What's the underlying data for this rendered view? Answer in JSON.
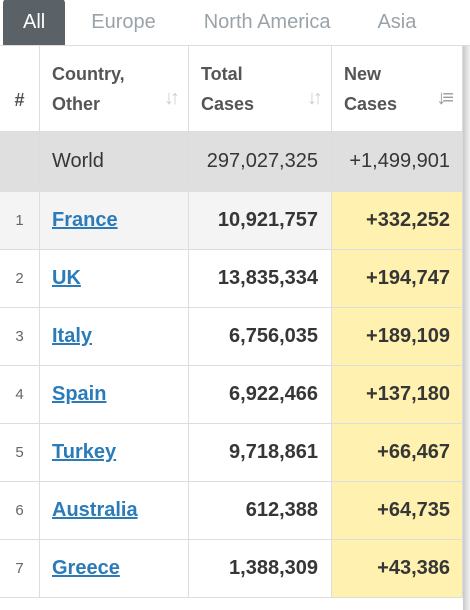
{
  "tabs": [
    "All",
    "Europe",
    "North America",
    "Asia"
  ],
  "headers": {
    "index": "#",
    "country": "Country, Other",
    "total_cases": "Total Cases",
    "new_cases": "New Cases",
    "sort_icon": "sort-icon",
    "sort_active_icon": "sort-descending-icon"
  },
  "world": {
    "country": "World",
    "total_cases": "297,027,325",
    "new_cases": "+1,499,901"
  },
  "rows": [
    {
      "index": "1",
      "country": "France",
      "total_cases": "10,921,757",
      "new_cases": "+332,252"
    },
    {
      "index": "2",
      "country": "UK",
      "total_cases": "13,835,334",
      "new_cases": "+194,747"
    },
    {
      "index": "3",
      "country": "Italy",
      "total_cases": "6,756,035",
      "new_cases": "+189,109"
    },
    {
      "index": "4",
      "country": "Spain",
      "total_cases": "6,922,466",
      "new_cases": "+137,180"
    },
    {
      "index": "5",
      "country": "Turkey",
      "total_cases": "9,718,861",
      "new_cases": "+66,467"
    },
    {
      "index": "6",
      "country": "Australia",
      "total_cases": "612,388",
      "new_cases": "+64,735"
    },
    {
      "index": "7",
      "country": "Greece",
      "total_cases": "1,388,309",
      "new_cases": "+43,386"
    }
  ],
  "colors": {
    "tab_active_bg": "#5a6268",
    "link": "#2b7bb9",
    "new_cases_highlight": "#fff1b0",
    "world_row_bg": "#dfdfdf"
  }
}
